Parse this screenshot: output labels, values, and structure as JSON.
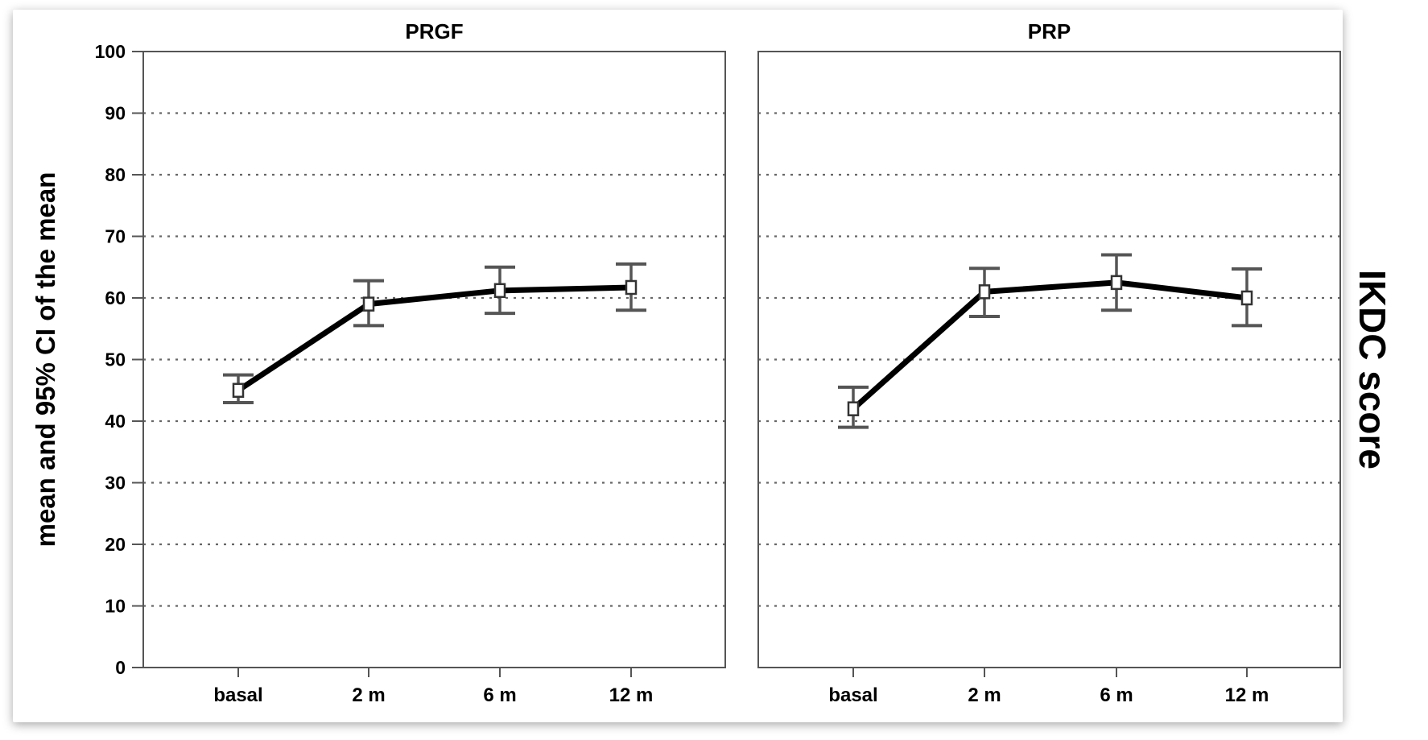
{
  "chart_data": {
    "type": "line",
    "title": "IKDC score",
    "ylabel": "mean and 95% CI of the mean",
    "ylim": [
      0,
      100
    ],
    "yticks": [
      0,
      10,
      20,
      30,
      40,
      50,
      60,
      70,
      80,
      90,
      100
    ],
    "categories": [
      "basal",
      "2 m",
      "6 m",
      "12 m"
    ],
    "grid": "horizontal dotted",
    "colors": {
      "line": "#000000",
      "error_bar": "#555555",
      "grid": "#666666",
      "axis": "#555555"
    },
    "panels": [
      {
        "title": "PRGF",
        "means": [
          45,
          59,
          61.2,
          61.7
        ],
        "ci_low": [
          43,
          55.5,
          57.5,
          58
        ],
        "ci_high": [
          47.5,
          62.8,
          65,
          65.5
        ]
      },
      {
        "title": "PRP",
        "means": [
          42,
          61,
          62.5,
          60
        ],
        "ci_low": [
          39,
          57,
          58,
          55.5
        ],
        "ci_high": [
          45.5,
          64.8,
          67,
          64.7
        ]
      }
    ]
  }
}
